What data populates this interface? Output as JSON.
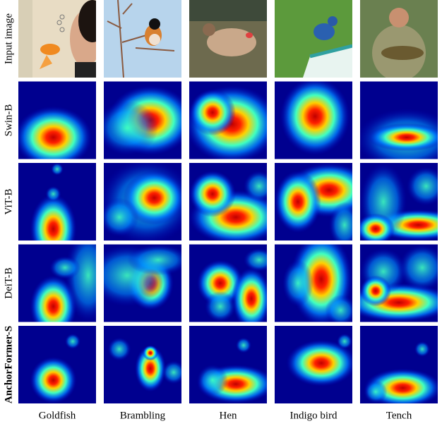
{
  "row_labels": [
    "Input image",
    "Swin-B",
    "ViT-B",
    "DeiT-B",
    "AnchorFormer-S"
  ],
  "column_labels": [
    "Goldfish",
    "Brambling",
    "Hen",
    "Indigo bird",
    "Tench"
  ]
}
